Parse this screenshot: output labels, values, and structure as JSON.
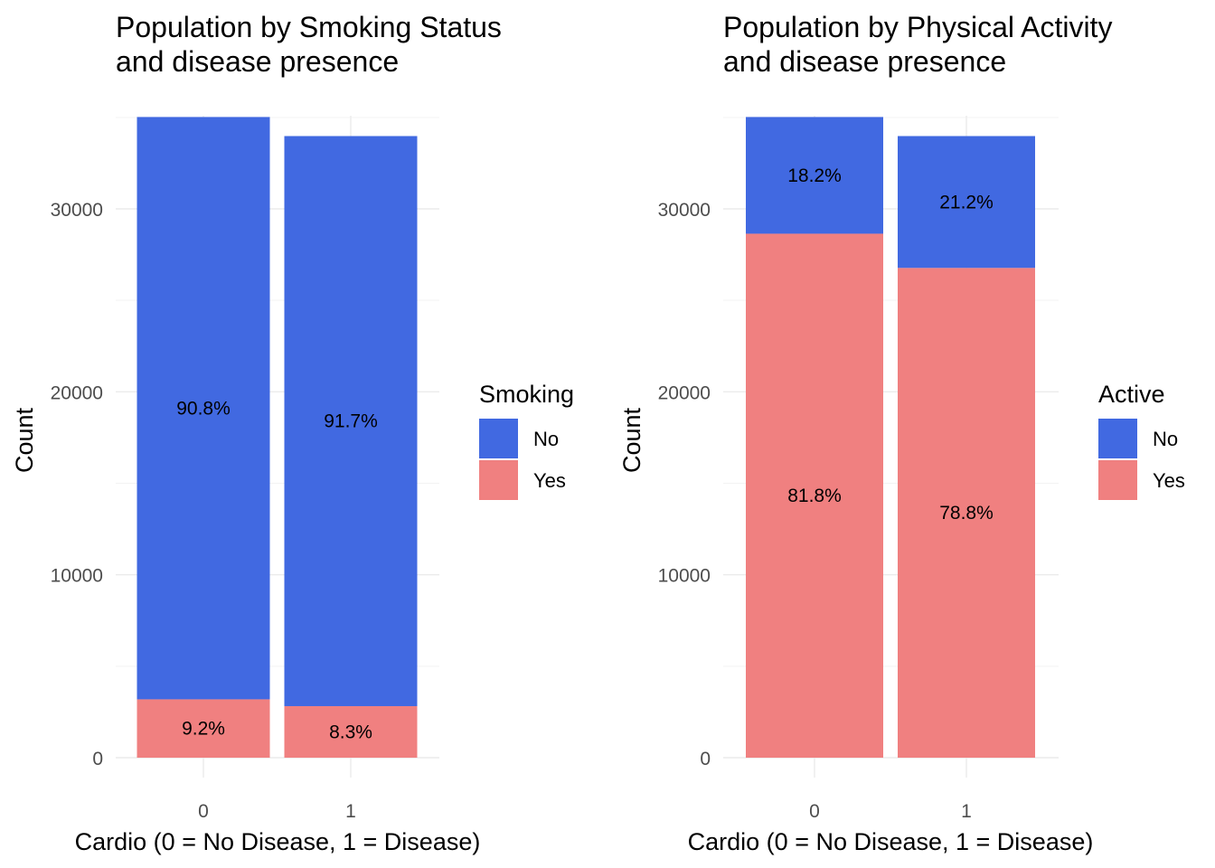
{
  "chart_data": [
    {
      "type": "bar",
      "stacked": true,
      "title_lines": [
        "Population by Smoking Status",
        "and disease presence"
      ],
      "xlabel": "Cardio (0 = No Disease, 1 = Disease)",
      "ylabel": "Count",
      "categories": [
        "0",
        "1"
      ],
      "ylim": [
        0,
        35000
      ],
      "yticks": [
        0,
        10000,
        20000,
        30000
      ],
      "ytick_labels": [
        "0",
        "10000",
        "20000",
        "30000"
      ],
      "legend": {
        "title": "Smoking",
        "position": "right"
      },
      "series": [
        {
          "name": "Yes",
          "color": "#f08080",
          "values": [
            3191,
            2818
          ],
          "labels": [
            "9.2%",
            "8.3%"
          ]
        },
        {
          "name": "No",
          "color": "#4169e1",
          "values": [
            31830,
            31161
          ],
          "labels": [
            "90.8%",
            "91.7%"
          ]
        }
      ]
    },
    {
      "type": "bar",
      "stacked": true,
      "title_lines": [
        "Population by Physical Activity",
        "and disease presence"
      ],
      "xlabel": "Cardio (0 = No Disease, 1 = Disease)",
      "ylabel": "Count",
      "categories": [
        "0",
        "1"
      ],
      "ylim": [
        0,
        35000
      ],
      "yticks": [
        0,
        10000,
        20000,
        30000
      ],
      "ytick_labels": [
        "0",
        "10000",
        "20000",
        "30000"
      ],
      "legend": {
        "title": "Active",
        "position": "right"
      },
      "series": [
        {
          "name": "Yes",
          "color": "#f08080",
          "values": [
            28643,
            26773
          ],
          "labels": [
            "81.8%",
            "78.8%"
          ]
        },
        {
          "name": "No",
          "color": "#4169e1",
          "values": [
            6378,
            7206
          ],
          "labels": [
            "18.2%",
            "21.2%"
          ]
        }
      ]
    }
  ]
}
